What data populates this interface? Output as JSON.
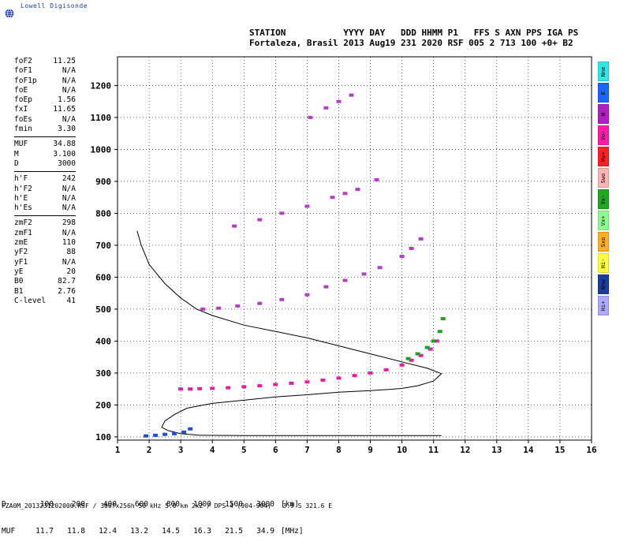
{
  "brand": {
    "text": "Lowell Digisonde"
  },
  "header": {
    "labels": "STATION           YYYY DAY   DDD HHMM P1   FFS S AXN PPS IGA PS",
    "values": "Fortaleza, Brasil 2013 Aug19 231 2020 RSF 005 2 713 100 +0+ B2"
  },
  "params": {
    "group1": [
      {
        "k": "foF2",
        "v": "11.25"
      },
      {
        "k": "foF1",
        "v": "N/A"
      },
      {
        "k": "foF1p",
        "v": "N/A"
      },
      {
        "k": "foE",
        "v": "N/A"
      },
      {
        "k": "foEp",
        "v": "1.56"
      },
      {
        "k": "fxI",
        "v": "11.65"
      },
      {
        "k": "foEs",
        "v": "N/A"
      },
      {
        "k": "fmin",
        "v": "3.30"
      }
    ],
    "group2": [
      {
        "k": "MUF",
        "v": "34.88"
      },
      {
        "k": "M",
        "v": "3.100"
      },
      {
        "k": "D",
        "v": "3000"
      }
    ],
    "group3": [
      {
        "k": "h'F",
        "v": "242"
      },
      {
        "k": "h'F2",
        "v": "N/A"
      },
      {
        "k": "h'E",
        "v": "N/A"
      },
      {
        "k": "h'Es",
        "v": "N/A"
      }
    ],
    "group4": [
      {
        "k": "zmF2",
        "v": "298"
      },
      {
        "k": "zmF1",
        "v": "N/A"
      },
      {
        "k": "zmE",
        "v": "110"
      },
      {
        "k": "yF2",
        "v": "88"
      },
      {
        "k": "yF1",
        "v": "N/A"
      },
      {
        "k": "yE",
        "v": "20"
      },
      {
        "k": "B0",
        "v": "82.7"
      },
      {
        "k": "B1",
        "v": "2.76"
      },
      {
        "k": "C-level",
        "v": "41"
      }
    ]
  },
  "legend": [
    {
      "label": "Nne",
      "color": "#33e6e6"
    },
    {
      "label": "E",
      "color": "#1a66ff"
    },
    {
      "label": "W",
      "color": "#b020c0"
    },
    {
      "label": "Vo-",
      "color": "#ff1aa8"
    },
    {
      "label": "Vo+",
      "color": "#ff2020"
    },
    {
      "label": "Swo",
      "color": "#ffb3b3"
    },
    {
      "label": "Vx-",
      "color": "#22a822"
    },
    {
      "label": "Vx+",
      "color": "#8cff8c"
    },
    {
      "label": "Sxo",
      "color": "#ffb020"
    },
    {
      "label": "Hi-",
      "color": "#ffff40"
    },
    {
      "label": "Nnw",
      "color": "#1a3da0"
    },
    {
      "label": "Hi+",
      "color": "#b0a8ff"
    }
  ],
  "bottom": {
    "d_label": "D",
    "d_values": [
      "100",
      "200",
      "400",
      "600",
      "800",
      "1000",
      "1500",
      "3000"
    ],
    "d_unit": "[km]",
    "muf_label": "MUF",
    "muf_values": [
      "11.7",
      "11.8",
      "12.4",
      "13.2",
      "14.5",
      "16.3",
      "21.5",
      "34.9"
    ],
    "muf_unit": "[MHz]"
  },
  "footer": "FZA0M_2013231202000.RSF / 300fx256h 50 kHz 5.0 km 2x2 / DPS-4 (904-904)   3.9 S 321.6 E",
  "chart_data": {
    "type": "scatter",
    "xlim": [
      1,
      16
    ],
    "ylim": [
      90,
      1290
    ],
    "x_ticks": [
      1,
      2,
      3,
      4,
      5,
      6,
      7,
      8,
      9,
      10,
      11,
      12,
      13,
      14,
      15,
      16
    ],
    "y_ticks": [
      100,
      200,
      300,
      400,
      500,
      600,
      700,
      800,
      900,
      1000,
      1100,
      1200
    ],
    "grid": true,
    "profile": {
      "x": [
        1.62,
        1.75,
        2.0,
        2.5,
        3.0,
        3.5,
        4.0,
        5.0,
        6.0,
        7.0,
        8.0,
        9.0,
        10.0,
        10.8,
        11.25,
        11.0,
        10.5,
        10.0,
        9.5,
        9.0,
        8.0,
        7.0,
        6.0,
        5.0,
        4.0,
        3.2,
        2.8,
        2.5,
        2.4,
        2.6,
        3.0,
        3.6,
        5.0,
        7.0,
        9.5,
        10.0,
        10.5,
        11.0,
        11.25
      ],
      "y": [
        745,
        700,
        640,
        580,
        535,
        500,
        480,
        450,
        430,
        410,
        385,
        360,
        335,
        315,
        298,
        275,
        260,
        252,
        248,
        245,
        240,
        232,
        225,
        215,
        205,
        190,
        170,
        150,
        130,
        120,
        110,
        105,
        104,
        104,
        104,
        104,
        104,
        104,
        104
      ]
    },
    "traces": [
      {
        "name": "o-mode",
        "color": "#e020a0",
        "x": [
          3.0,
          3.3,
          3.6,
          4.0,
          4.5,
          5.0,
          5.5,
          6.0,
          6.5,
          7.0,
          7.5,
          8.0,
          8.5,
          9.0,
          9.5,
          10.0,
          10.3,
          10.6,
          10.9,
          11.1
        ],
        "y": [
          250,
          250,
          251,
          252,
          254,
          257,
          260,
          264,
          268,
          272,
          278,
          284,
          292,
          300,
          310,
          325,
          340,
          355,
          375,
          400
        ]
      },
      {
        "name": "x-mode",
        "color": "#20a020",
        "x": [
          10.2,
          10.5,
          10.8,
          11.0,
          11.2,
          11.3
        ],
        "y": [
          345,
          360,
          380,
          400,
          430,
          470
        ]
      },
      {
        "name": "2F",
        "color": "#b040c0",
        "x": [
          3.7,
          4.2,
          4.8,
          5.5,
          6.2,
          7.0,
          7.6,
          8.2,
          8.8,
          9.3
        ],
        "y": [
          500,
          503,
          510,
          518,
          530,
          545,
          570,
          590,
          610,
          630
        ]
      },
      {
        "name": "3F",
        "color": "#b040c0",
        "x": [
          4.7,
          5.5,
          6.2,
          7.0,
          7.8,
          8.2,
          8.6,
          9.2
        ],
        "y": [
          760,
          780,
          800,
          822,
          850,
          862,
          875,
          905
        ]
      },
      {
        "name": "4F",
        "color": "#b040c0",
        "x": [
          7.1,
          7.6,
          8.0,
          8.4
        ],
        "y": [
          1100,
          1130,
          1150,
          1170
        ]
      },
      {
        "name": "F2-cusp",
        "color": "#b040c0",
        "x": [
          10.0,
          10.3,
          10.6
        ],
        "y": [
          665,
          690,
          720
        ]
      },
      {
        "name": "Es",
        "color": "#2050d0",
        "x": [
          1.9,
          2.2,
          2.5,
          2.8,
          3.1,
          3.3
        ],
        "y": [
          103,
          105,
          108,
          110,
          115,
          125
        ]
      }
    ]
  }
}
